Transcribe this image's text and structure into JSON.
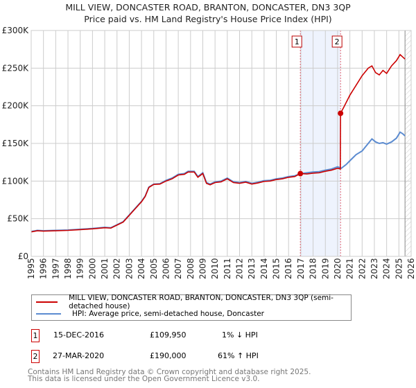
{
  "chart_data": {
    "type": "line",
    "title": "MILL VIEW, DONCASTER ROAD, BRANTON, DONCASTER, DN3 3QP",
    "subtitle": "Price paid vs. HM Land Registry's House Price Index (HPI)",
    "xlim": [
      1995,
      2026
    ],
    "ylim": [
      0,
      300000
    ],
    "x_ticks": [
      "1995",
      "1996",
      "1997",
      "1998",
      "1999",
      "2000",
      "2001",
      "2002",
      "2003",
      "2004",
      "2005",
      "2006",
      "2007",
      "2008",
      "2009",
      "2010",
      "2011",
      "2012",
      "2013",
      "2014",
      "2015",
      "2016",
      "2017",
      "2018",
      "2019",
      "2020",
      "2021",
      "2022",
      "2023",
      "2024",
      "2025",
      "2026"
    ],
    "y_ticks": [
      {
        "v": 0,
        "l": "£0"
      },
      {
        "v": 50000,
        "l": "£50K"
      },
      {
        "v": 100000,
        "l": "£100K"
      },
      {
        "v": 150000,
        "l": "£150K"
      },
      {
        "v": 200000,
        "l": "£200K"
      },
      {
        "v": 250000,
        "l": "£250K"
      },
      {
        "v": 300000,
        "l": "£300K"
      }
    ],
    "grid": true,
    "series": [
      {
        "name": "HPI: Average price, semi-detached house, Doncaster",
        "color": "#5b8bd0",
        "x": [
          1995,
          1995.5,
          1996,
          1997,
          1998,
          1999,
          2000,
          2001,
          2001.5,
          2002,
          2002.5,
          2003,
          2003.5,
          2004,
          2004.3,
          2004.6,
          2005,
          2005.5,
          2006,
          2006.5,
          2007,
          2007.5,
          2007.8,
          2008.3,
          2008.6,
          2009,
          2009.3,
          2009.6,
          2010,
          2010.5,
          2011,
          2011.5,
          2012,
          2012.5,
          2013,
          2013.5,
          2014,
          2014.5,
          2015,
          2015.5,
          2016,
          2016.5,
          2017,
          2017.5,
          2018,
          2018.5,
          2019,
          2019.5,
          2020,
          2020.3,
          2020.7,
          2021,
          2021.5,
          2022,
          2022.5,
          2022.8,
          2023.1,
          2023.4,
          2023.7,
          2024,
          2024.4,
          2024.8,
          2025.1,
          2025.3,
          2025.5
        ],
        "y": [
          33000,
          34500,
          34000,
          34500,
          35000,
          36000,
          37000,
          38500,
          38000,
          42000,
          46000,
          55000,
          64000,
          73000,
          80000,
          92000,
          96000,
          96500,
          101000,
          104000,
          109000,
          110000,
          113000,
          113000,
          106000,
          111000,
          98000,
          96000,
          99000,
          100000,
          104000,
          99000,
          98000,
          99500,
          97000,
          98500,
          100500,
          101000,
          103000,
          104000,
          106000,
          107000,
          110000,
          111000,
          112000,
          112500,
          114500,
          116000,
          119000,
          117000,
          122000,
          127000,
          135000,
          140000,
          150000,
          156000,
          152000,
          150000,
          151000,
          149000,
          152000,
          157000,
          165000,
          163000,
          160000
        ]
      },
      {
        "name": "MILL VIEW, DONCASTER ROAD, BRANTON, DONCASTER, DN3 3QP (semi-detached house)",
        "color": "#cc0000",
        "x": [
          1995,
          1995.5,
          1996,
          1997,
          1998,
          1999,
          2000,
          2001,
          2001.5,
          2002,
          2002.5,
          2003,
          2003.5,
          2004,
          2004.3,
          2004.6,
          2005,
          2005.5,
          2006,
          2006.5,
          2007,
          2007.5,
          2007.8,
          2008.3,
          2008.6,
          2009,
          2009.3,
          2009.6,
          2010,
          2010.5,
          2011,
          2011.5,
          2012,
          2012.5,
          2013,
          2013.5,
          2014,
          2014.5,
          2015,
          2015.5,
          2016,
          2016.5,
          2016.96,
          2017.5,
          2018,
          2018.5,
          2019,
          2019.5,
          2020,
          2020.22,
          2020.24,
          2020.5,
          2021,
          2021.5,
          2022,
          2022.5,
          2022.8,
          2023.1,
          2023.4,
          2023.7,
          2024,
          2024.4,
          2024.8,
          2025.1,
          2025.3,
          2025.5
        ],
        "y": [
          32500,
          34000,
          33500,
          34000,
          34500,
          35500,
          36500,
          38000,
          37500,
          41500,
          45500,
          54500,
          63500,
          72500,
          79500,
          91500,
          95500,
          96000,
          100000,
          103000,
          108000,
          109000,
          112000,
          112000,
          105000,
          110000,
          97000,
          95000,
          98000,
          99000,
          103000,
          98000,
          97000,
          98500,
          96000,
          97500,
          99500,
          100000,
          102000,
          103000,
          105000,
          106000,
          109950,
          109500,
          110500,
          111000,
          113000,
          114500,
          117000,
          116000,
          190000,
          198000,
          214000,
          227000,
          240000,
          250000,
          253000,
          244000,
          241000,
          247000,
          243000,
          253000,
          260000,
          268000,
          265000,
          262000
        ]
      }
    ],
    "sales": [
      {
        "n": "1",
        "x": 2016.96,
        "y": 109950
      },
      {
        "n": "2",
        "x": 2020.24,
        "y": 190000
      }
    ],
    "shade": [
      2016.96,
      2020.24
    ]
  },
  "legend": {
    "red": "MILL VIEW, DONCASTER ROAD, BRANTON, DONCASTER, DN3 3QP (semi-detached house)",
    "blue": "HPI: Average price, semi-detached house, Doncaster"
  },
  "transactions": [
    {
      "n": "1",
      "date": "15-DEC-2016",
      "price": "£109,950",
      "hpi": "1% ↓ HPI"
    },
    {
      "n": "2",
      "date": "27-MAR-2020",
      "price": "£190,000",
      "hpi": "61% ↑ HPI"
    }
  ],
  "footer": {
    "line1": "Contains HM Land Registry data © Crown copyright and database right 2025.",
    "line2": "This data is licensed under the Open Government Licence v3.0."
  }
}
